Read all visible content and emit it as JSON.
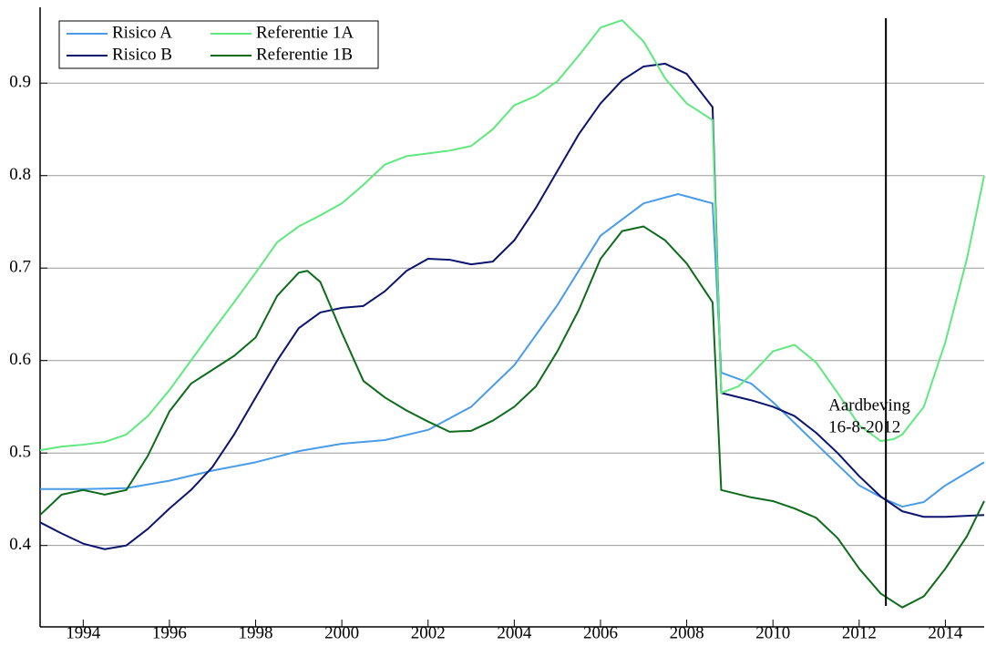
{
  "chart_data": {
    "type": "line",
    "xlim": [
      1993,
      2014.9
    ],
    "xticks": [
      1994,
      1996,
      1998,
      2000,
      2002,
      2004,
      2006,
      2008,
      2010,
      2012,
      2014
    ],
    "ylim": [
      0.312,
      0.982
    ],
    "yticks": [
      0.4,
      0.5,
      0.6,
      0.7,
      0.8,
      0.9
    ],
    "grid": true,
    "legend": "upper left",
    "series": [
      {
        "name": "Risico A",
        "color": "#4a9be8",
        "x": [
          1993,
          1994,
          1995,
          1996,
          1997,
          1998,
          1999,
          2000,
          2001,
          2002,
          2003,
          2004,
          2005,
          2006,
          2007,
          2007.8,
          2008.6,
          2008.8,
          2009.5,
          2010,
          2011,
          2012,
          2012.6,
          2013,
          2013.5,
          2014,
          2014.9
        ],
        "values": [
          0.461,
          0.461,
          0.462,
          0.47,
          0.481,
          0.49,
          0.502,
          0.51,
          0.514,
          0.525,
          0.55,
          0.595,
          0.66,
          0.735,
          0.77,
          0.78,
          0.77,
          0.587,
          0.575,
          0.555,
          0.51,
          0.465,
          0.45,
          0.442,
          0.447,
          0.465,
          0.49
        ]
      },
      {
        "name": "Risico B",
        "color": "#0c1470",
        "x": [
          1993,
          1993.5,
          1994,
          1994.5,
          1995,
          1995.5,
          1996,
          1996.5,
          1997,
          1997.5,
          1998,
          1998.5,
          1999,
          1999.5,
          2000,
          2000.5,
          2001,
          2001.5,
          2002,
          2002.5,
          2003,
          2003.5,
          2004,
          2004.5,
          2005,
          2005.5,
          2006,
          2006.5,
          2007,
          2007.5,
          2008,
          2008.6,
          2008.8,
          2009.5,
          2010,
          2010.5,
          2011,
          2011.5,
          2012,
          2012.5,
          2013,
          2013.5,
          2014,
          2014.9
        ],
        "values": [
          0.425,
          0.413,
          0.402,
          0.396,
          0.4,
          0.418,
          0.44,
          0.46,
          0.485,
          0.52,
          0.56,
          0.6,
          0.635,
          0.652,
          0.657,
          0.659,
          0.675,
          0.697,
          0.71,
          0.709,
          0.704,
          0.707,
          0.73,
          0.765,
          0.805,
          0.845,
          0.878,
          0.903,
          0.918,
          0.921,
          0.91,
          0.874,
          0.565,
          0.557,
          0.55,
          0.54,
          0.522,
          0.5,
          0.475,
          0.453,
          0.437,
          0.431,
          0.431,
          0.433
        ]
      },
      {
        "name": "Referentie 1A",
        "color": "#5fe87f",
        "x": [
          1993,
          1993.5,
          1994,
          1994.5,
          1995,
          1995.5,
          1996,
          1996.5,
          1997,
          1997.5,
          1998,
          1998.5,
          1999,
          1999.5,
          2000,
          2000.5,
          2001,
          2001.5,
          2002,
          2002.5,
          2003,
          2003.5,
          2004,
          2004.5,
          2005,
          2005.5,
          2006,
          2006.5,
          2007,
          2007.5,
          2008,
          2008.6,
          2008.8,
          2009.2,
          2009.5,
          2010,
          2010.5,
          2011,
          2011.5,
          2012,
          2012.5,
          2012.8,
          2013,
          2013.5,
          2014,
          2014.5,
          2014.9
        ],
        "values": [
          0.503,
          0.507,
          0.509,
          0.512,
          0.52,
          0.54,
          0.568,
          0.6,
          0.632,
          0.663,
          0.695,
          0.728,
          0.745,
          0.757,
          0.77,
          0.79,
          0.812,
          0.821,
          0.824,
          0.827,
          0.832,
          0.85,
          0.876,
          0.886,
          0.902,
          0.93,
          0.96,
          0.968,
          0.945,
          0.905,
          0.878,
          0.86,
          0.565,
          0.572,
          0.585,
          0.61,
          0.617,
          0.598,
          0.565,
          0.53,
          0.513,
          0.515,
          0.52,
          0.55,
          0.62,
          0.71,
          0.8
        ]
      },
      {
        "name": "Referentie 1B",
        "color": "#0e6b1c",
        "x": [
          1993,
          1993.5,
          1994,
          1994.5,
          1995,
          1995.5,
          1996,
          1996.5,
          1997,
          1997.5,
          1998,
          1998.5,
          1999,
          1999.2,
          1999.5,
          2000,
          2000.5,
          2001,
          2001.5,
          2002,
          2002.5,
          2003,
          2003.5,
          2004,
          2004.5,
          2005,
          2005.5,
          2006,
          2006.5,
          2007,
          2007.5,
          2008,
          2008.6,
          2008.8,
          2009.5,
          2010,
          2010.5,
          2011,
          2011.5,
          2012,
          2012.5,
          2013,
          2013.5,
          2014,
          2014.5,
          2014.9
        ],
        "values": [
          0.433,
          0.455,
          0.46,
          0.455,
          0.46,
          0.497,
          0.545,
          0.575,
          0.59,
          0.605,
          0.625,
          0.67,
          0.695,
          0.697,
          0.685,
          0.63,
          0.578,
          0.56,
          0.546,
          0.534,
          0.523,
          0.524,
          0.535,
          0.55,
          0.572,
          0.61,
          0.655,
          0.71,
          0.74,
          0.745,
          0.73,
          0.705,
          0.663,
          0.46,
          0.452,
          0.448,
          0.44,
          0.43,
          0.408,
          0.375,
          0.348,
          0.333,
          0.345,
          0.375,
          0.41,
          0.448
        ]
      }
    ],
    "annotation": {
      "x": 2012.62,
      "text": [
        "Aardbeving",
        "16-8-2012"
      ]
    }
  }
}
